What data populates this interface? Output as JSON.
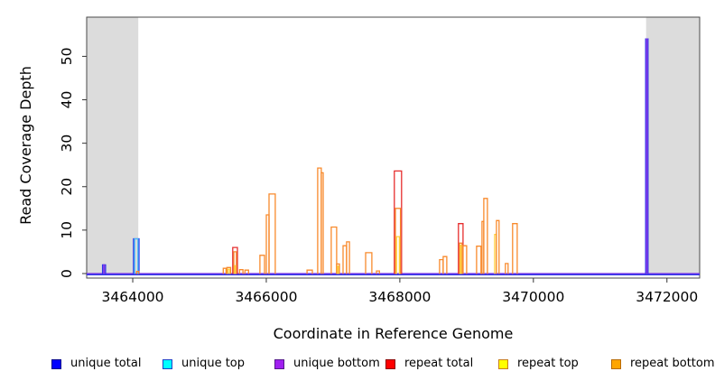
{
  "figure": {
    "background": "#FFFFFF",
    "frame_color": "#4A4A4A",
    "tick_color": "#333333",
    "text_color": "#000000"
  },
  "chart_data": {
    "type": "line",
    "style": "step-coverage-outline",
    "title": "",
    "xlabel": "Coordinate in Reference Genome",
    "ylabel": "Read Coverage Depth",
    "xlim": [
      3463310,
      3472490
    ],
    "ylim": [
      0,
      59
    ],
    "x_ticks": [
      3464000,
      3466000,
      3468000,
      3470000,
      3472000
    ],
    "y_ticks": [
      0,
      10,
      20,
      30,
      40,
      50
    ],
    "grid": false,
    "masked_region_color": "#DCDCDC",
    "masked_regions": [
      [
        3463310,
        3464083
      ],
      [
        3471688,
        3472490
      ]
    ],
    "baseline_depth": 0,
    "series": [
      {
        "name": "unique total",
        "line_color": "#2B35EA",
        "legend_fill": "#0000FF",
        "legend_border": "#00008B"
      },
      {
        "name": "unique top",
        "line_color": "#49BDF5",
        "legend_fill": "#00FFFF",
        "legend_border": "#1C41C8"
      },
      {
        "name": "unique bottom",
        "line_color": "#8039E8",
        "legend_fill": "#A020F0",
        "legend_border": "#551A8B"
      },
      {
        "name": "repeat total",
        "line_color": "#E62E2E",
        "legend_fill": "#FF0000",
        "legend_border": "#8B0000"
      },
      {
        "name": "repeat top",
        "line_color": "#FFD040",
        "legend_fill": "#FFFF00",
        "legend_border": "#C87E1E"
      },
      {
        "name": "repeat bottom",
        "line_color": "#F88A2C",
        "legend_fill": "#FFA500",
        "legend_border": "#B86A00"
      }
    ],
    "peaks": [
      {
        "x1": 3463548,
        "x2": 3463592,
        "layers": [
          {
            "series": "unique total",
            "depth": 2
          },
          {
            "series": "unique bottom",
            "depth": 2
          }
        ]
      },
      {
        "x1": 3464012,
        "x2": 3464094,
        "layers": [
          {
            "series": "unique total",
            "depth": 8
          },
          {
            "series": "unique top",
            "depth": 8
          }
        ]
      },
      {
        "x1": 3464058,
        "x2": 3464090,
        "layers": [
          {
            "series": "repeat bottom",
            "depth": 0.5
          }
        ]
      },
      {
        "x1": 3465356,
        "x2": 3465398,
        "layers": [
          {
            "series": "repeat bottom",
            "depth": 1.2
          }
        ]
      },
      {
        "x1": 3465410,
        "x2": 3465466,
        "layers": [
          {
            "series": "repeat bottom",
            "depth": 1.4
          },
          {
            "series": "repeat top",
            "depth": 1.0
          }
        ]
      },
      {
        "x1": 3465497,
        "x2": 3465568,
        "layers": [
          {
            "series": "repeat total",
            "depth": 6.0
          },
          {
            "series": "repeat bottom",
            "depth": 5.0
          },
          {
            "series": "repeat top",
            "depth": 1.8
          }
        ]
      },
      {
        "x1": 3465600,
        "x2": 3465650,
        "layers": [
          {
            "series": "repeat bottom",
            "depth": 0.9
          }
        ]
      },
      {
        "x1": 3465680,
        "x2": 3465734,
        "layers": [
          {
            "series": "repeat bottom",
            "depth": 0.8
          }
        ]
      },
      {
        "x1": 3465905,
        "x2": 3465973,
        "layers": [
          {
            "series": "repeat bottom",
            "depth": 4.2
          }
        ]
      },
      {
        "x1": 3466000,
        "x2": 3466041,
        "layers": [
          {
            "series": "repeat bottom",
            "depth": 13.5
          }
        ]
      },
      {
        "x1": 3466041,
        "x2": 3466134,
        "layers": [
          {
            "series": "repeat bottom",
            "depth": 18.3
          }
        ]
      },
      {
        "x1": 3466610,
        "x2": 3466690,
        "layers": [
          {
            "series": "repeat bottom",
            "depth": 0.8
          }
        ]
      },
      {
        "x1": 3466770,
        "x2": 3466824,
        "layers": [
          {
            "series": "repeat bottom",
            "depth": 24.3
          }
        ]
      },
      {
        "x1": 3466824,
        "x2": 3466852,
        "layers": [
          {
            "series": "repeat bottom",
            "depth": 23.2
          }
        ]
      },
      {
        "x1": 3466973,
        "x2": 3467054,
        "layers": [
          {
            "series": "repeat bottom",
            "depth": 10.7
          }
        ]
      },
      {
        "x1": 3467054,
        "x2": 3467095,
        "layers": [
          {
            "series": "repeat bottom",
            "depth": 2.2
          },
          {
            "series": "repeat top",
            "depth": 1.7
          }
        ]
      },
      {
        "x1": 3467149,
        "x2": 3467203,
        "layers": [
          {
            "series": "repeat bottom",
            "depth": 6.4
          }
        ]
      },
      {
        "x1": 3467203,
        "x2": 3467245,
        "layers": [
          {
            "series": "repeat bottom",
            "depth": 7.3
          }
        ]
      },
      {
        "x1": 3467487,
        "x2": 3467581,
        "layers": [
          {
            "series": "repeat bottom",
            "depth": 4.8
          }
        ]
      },
      {
        "x1": 3467650,
        "x2": 3467694,
        "layers": [
          {
            "series": "repeat bottom",
            "depth": 0.6
          }
        ]
      },
      {
        "x1": 3467918,
        "x2": 3468026,
        "layers": [
          {
            "series": "repeat total",
            "depth": 23.6
          },
          {
            "series": "repeat bottom",
            "depth": 15.0
          },
          {
            "series": "repeat top",
            "depth": 8.5
          }
        ]
      },
      {
        "x1": 3468595,
        "x2": 3468649,
        "layers": [
          {
            "series": "repeat bottom",
            "depth": 3.2
          }
        ]
      },
      {
        "x1": 3468649,
        "x2": 3468703,
        "layers": [
          {
            "series": "repeat bottom",
            "depth": 3.9
          }
        ]
      },
      {
        "x1": 3468878,
        "x2": 3468946,
        "layers": [
          {
            "series": "repeat total",
            "depth": 11.5
          },
          {
            "series": "repeat bottom",
            "depth": 7.0
          },
          {
            "series": "repeat top",
            "depth": 6.5
          }
        ]
      },
      {
        "x1": 3468946,
        "x2": 3469000,
        "layers": [
          {
            "series": "repeat bottom",
            "depth": 6.4
          }
        ]
      },
      {
        "x1": 3469149,
        "x2": 3469216,
        "layers": [
          {
            "series": "repeat bottom",
            "depth": 6.3
          }
        ]
      },
      {
        "x1": 3469230,
        "x2": 3469257,
        "layers": [
          {
            "series": "repeat bottom",
            "depth": 12.0
          }
        ]
      },
      {
        "x1": 3469257,
        "x2": 3469311,
        "layers": [
          {
            "series": "repeat bottom",
            "depth": 17.3
          }
        ]
      },
      {
        "x1": 3469419,
        "x2": 3469446,
        "layers": [
          {
            "series": "repeat top",
            "depth": 9.0
          }
        ]
      },
      {
        "x1": 3469446,
        "x2": 3469486,
        "layers": [
          {
            "series": "repeat bottom",
            "depth": 12.2
          }
        ]
      },
      {
        "x1": 3469581,
        "x2": 3469621,
        "layers": [
          {
            "series": "repeat bottom",
            "depth": 2.3
          }
        ]
      },
      {
        "x1": 3469689,
        "x2": 3469757,
        "layers": [
          {
            "series": "repeat bottom",
            "depth": 11.5
          }
        ]
      },
      {
        "x1": 3471682,
        "x2": 3471716,
        "layers": [
          {
            "series": "unique total",
            "depth": 54
          },
          {
            "series": "unique bottom",
            "depth": 54
          }
        ]
      }
    ],
    "baseline_colors": [
      "#2B35EA",
      "#8039E8"
    ],
    "legend_position": "bottom"
  },
  "legend": {
    "items": [
      {
        "label": "unique total"
      },
      {
        "label": "unique top"
      },
      {
        "label": "unique bottom"
      },
      {
        "label": "repeat total"
      },
      {
        "label": "repeat top"
      },
      {
        "label": "repeat bottom"
      }
    ]
  }
}
